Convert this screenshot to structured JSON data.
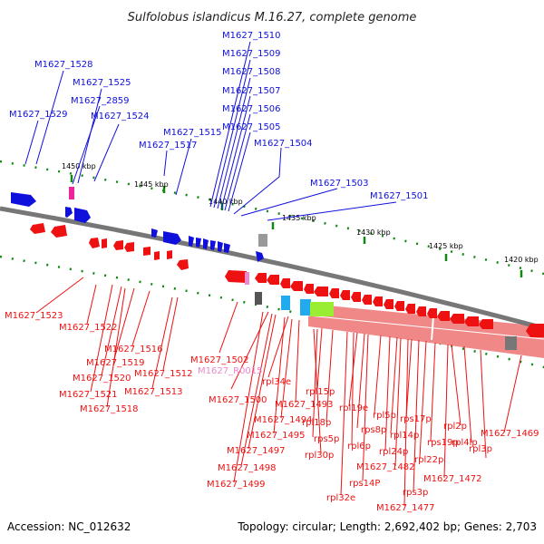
{
  "title": "Sulfolobus islandicus M.16.27, complete genome",
  "footer": {
    "accession": "Accession: NC_012632",
    "topology": "Topology: circular; Length: 2,692,402 bp; Genes: 2,703"
  },
  "colors": {
    "forward_gene": "#1010dd",
    "reverse_gene": "#ee1111",
    "rna_gene": "#ee88cc",
    "backbone": "#777777",
    "tick": "#118811",
    "cds_band": "#f08888",
    "band_cyan": "#22aaee",
    "band_green": "#99ee33",
    "band_gray": "#888888"
  },
  "kbp_ticks": [
    "1450 kbp",
    "1445 kbp",
    "1440 kbp",
    "1435 kbp",
    "1430 kbp",
    "1425 kbp",
    "1420 kbp"
  ],
  "forward_labels": [
    "M1627_1510",
    "M1627_1509",
    "M1627_1508",
    "M1627_1507",
    "M1627_1506",
    "M1627_1505",
    "M1627_1528",
    "M1627_1525",
    "M1627_2859",
    "M1627_1529",
    "M1627_1524",
    "M1627_1515",
    "M1627_1517",
    "M1627_1504",
    "M1627_1503",
    "M1627_1501"
  ],
  "reverse_labels": [
    "M1627_1523",
    "M1627_1522",
    "M1627_1516",
    "M1627_1519",
    "M1627_1520",
    "M1627_1512",
    "M1627_1521",
    "M1627_1513",
    "M1627_1518",
    "M1627_1502",
    "M1627_R0015",
    "M1627_1500",
    "rpl34e",
    "M1627_1493",
    "M1627_1494",
    "M1627_1495",
    "M1627_1497",
    "M1627_1498",
    "M1627_1499",
    "rpl15p",
    "rpl18p",
    "rps5p",
    "rpl30p",
    "rpl19e",
    "rps8p",
    "rpl6p",
    "rpl32e",
    "rpl5p",
    "rpl14p",
    "rpl24p",
    "rps17p",
    "rpl22p",
    "rps19p",
    "rpl2p",
    "rpl4lp",
    "rpl3p",
    "rps14P",
    "M1627_1482",
    "rps3p",
    "M1627_1477",
    "M1627_1472",
    "M1627_1469"
  ]
}
